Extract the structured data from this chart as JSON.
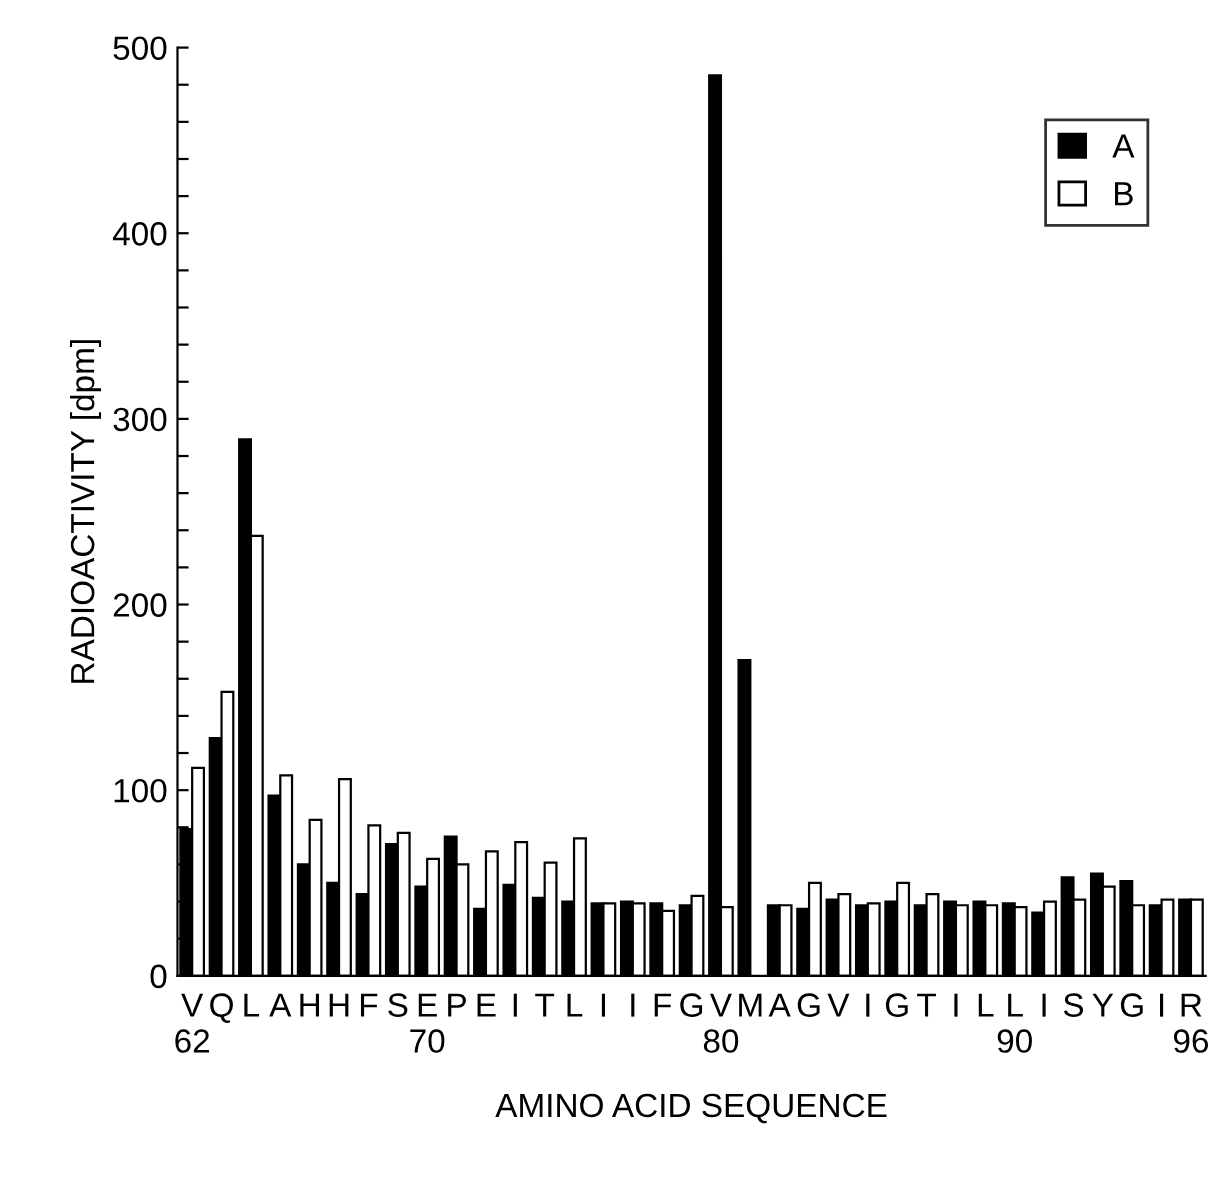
{
  "chart_data": {
    "type": "bar",
    "xlabel": "AMINO ACID SEQUENCE",
    "ylabel": "RADIOACTIVITY [dpm]",
    "categories": [
      "V\n62",
      "Q",
      "L",
      "A",
      "H",
      "H",
      "F",
      "S",
      "E\n70",
      "P",
      "E",
      "I",
      "T",
      "L",
      "I",
      "I",
      "F",
      "G",
      "V\n80",
      "M",
      "A",
      "G",
      "V",
      "I",
      "G",
      "T",
      "I",
      "L",
      "L\n90",
      "I",
      "S",
      "Y",
      "G",
      "I",
      "R\n96"
    ],
    "series": [
      {
        "name": "A",
        "color": "#000000",
        "values": [
          79,
          128,
          289,
          97,
          60,
          50,
          44,
          71,
          48,
          75,
          36,
          49,
          42,
          40,
          39,
          40,
          39,
          38,
          485,
          170,
          38,
          36,
          41,
          38,
          40,
          38,
          40,
          40,
          39,
          34,
          53,
          55,
          51,
          38,
          41
        ]
      },
      {
        "name": "B",
        "color": "#ffffff",
        "values": [
          112,
          153,
          237,
          108,
          84,
          106,
          81,
          77,
          63,
          60,
          67,
          72,
          61,
          74,
          39,
          39,
          35,
          43,
          37,
          null,
          38,
          50,
          44,
          39,
          50,
          44,
          38,
          38,
          37,
          40,
          41,
          48,
          38,
          41,
          41
        ]
      }
    ],
    "ylim": [
      0,
      500
    ],
    "yticks": [
      0,
      {
        "value": 20,
        "label": null
      },
      {
        "value": 40,
        "label": null
      },
      {
        "value": 60,
        "label": null
      },
      {
        "value": 80,
        "label": null
      },
      100,
      {
        "value": 120,
        "label": null
      },
      {
        "value": 140,
        "label": null
      },
      {
        "value": 160,
        "label": null
      },
      {
        "value": 180,
        "label": null
      },
      200,
      {
        "value": 220,
        "label": null
      },
      {
        "value": 240,
        "label": null
      },
      {
        "value": 260,
        "label": null
      },
      {
        "value": 280,
        "label": null
      },
      300,
      {
        "value": 320,
        "label": null
      },
      {
        "value": 340,
        "label": null
      },
      {
        "value": 360,
        "label": null
      },
      {
        "value": 380,
        "label": null
      },
      400,
      {
        "value": 420,
        "label": null
      },
      {
        "value": 440,
        "label": null
      },
      {
        "value": 460,
        "label": null
      },
      {
        "value": 480,
        "label": null
      },
      500
    ],
    "grid": false,
    "legend": "top right"
  }
}
